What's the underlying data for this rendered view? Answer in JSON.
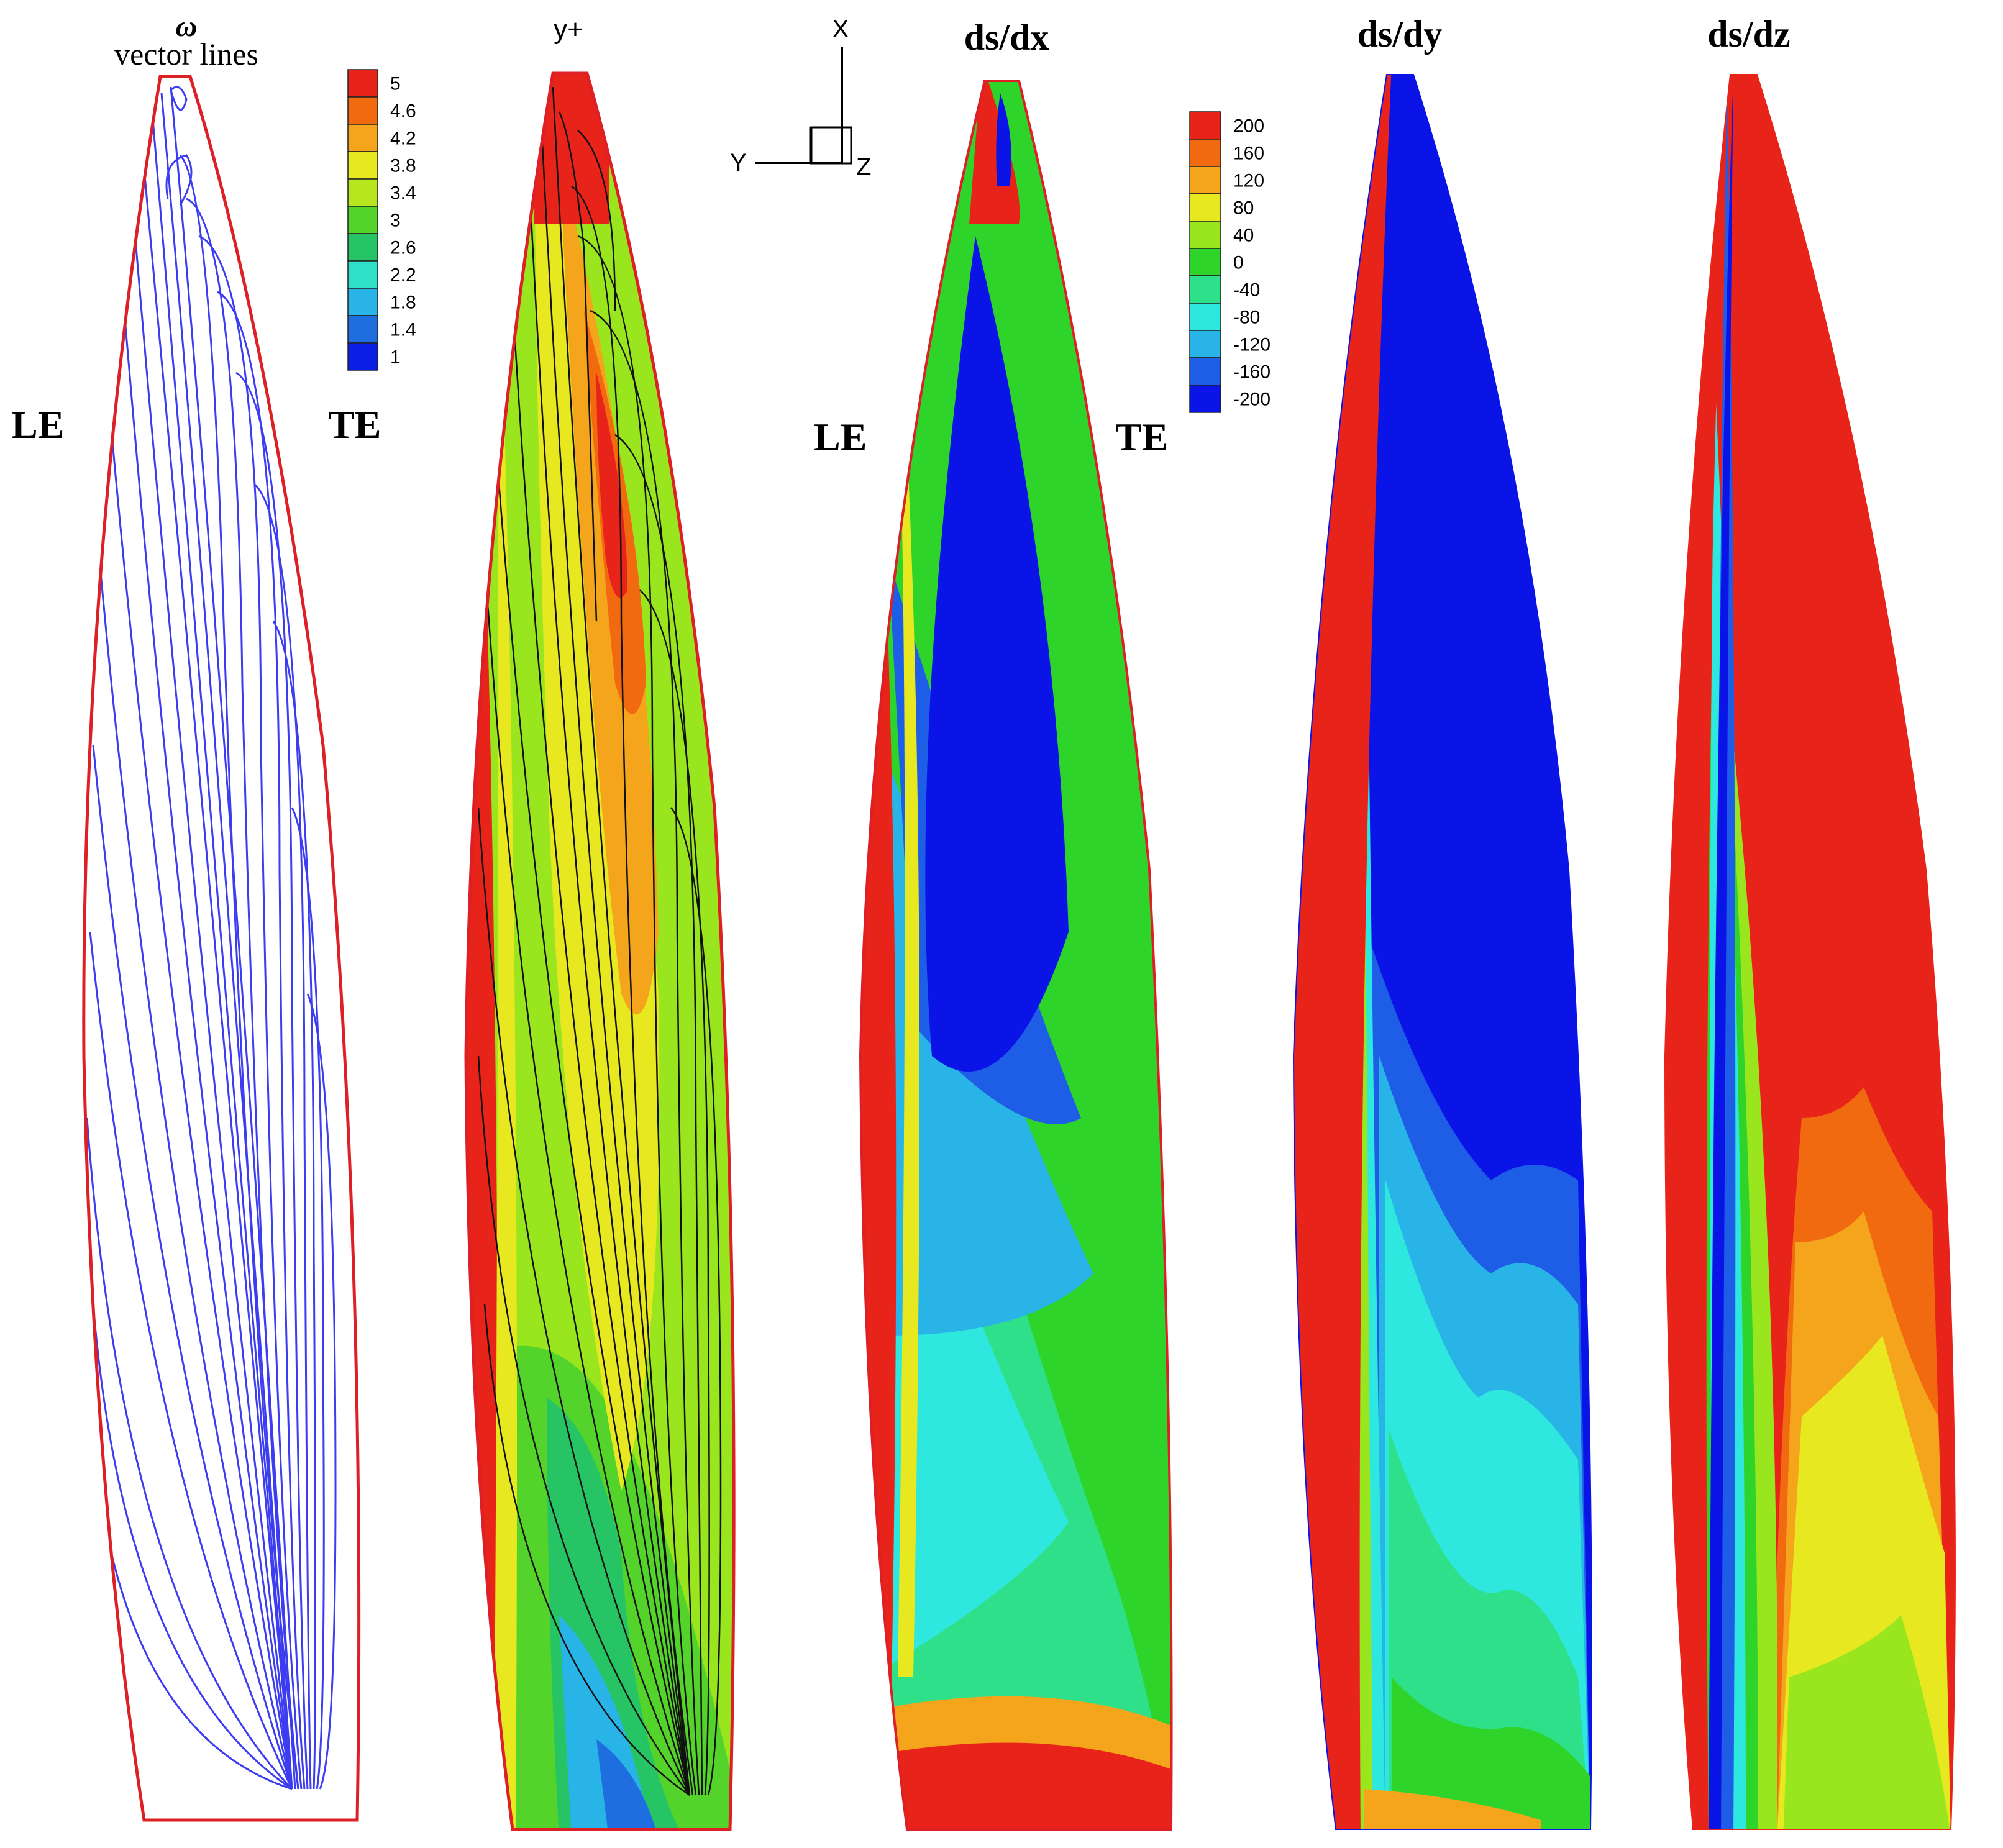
{
  "panels": {
    "omega": {
      "symbol": "ω",
      "title": "vector  lines",
      "le": "LE",
      "te": "TE"
    },
    "yplus": {
      "title": "y+"
    },
    "dsdx": {
      "title": "ds/dx",
      "le": "LE",
      "te": "TE"
    },
    "dsdy": {
      "title": "ds/dy"
    },
    "dsdz": {
      "title": "ds/dz"
    }
  },
  "axes": {
    "x": "X",
    "y": "Y",
    "z": "Z"
  },
  "legend_yplus": {
    "levels": [
      "5",
      "4.6",
      "4.2",
      "3.8",
      "3.4",
      "3",
      "2.6",
      "2.2",
      "1.8",
      "1.4",
      "1"
    ],
    "colors": [
      "#e8231a",
      "#f26a10",
      "#f5a51c",
      "#e8e820",
      "#b8e61e",
      "#54d42a",
      "#26c464",
      "#2ee0c8",
      "#28b4e6",
      "#1e6ee0",
      "#0a1ee6"
    ]
  },
  "legend_ds": {
    "levels": [
      "200",
      "160",
      "120",
      "80",
      "40",
      "0",
      "-40",
      "-80",
      "-120",
      "-160",
      "-200"
    ],
    "colors": [
      "#e8231a",
      "#f26a10",
      "#f5a51c",
      "#e8e820",
      "#9ae61e",
      "#2ed42a",
      "#2ee08a",
      "#2ee8e0",
      "#28b4e6",
      "#1e5ee6",
      "#0a14e6"
    ]
  },
  "colors": {
    "outline": "#dd1f26",
    "streamline": "#3c3cf0",
    "vector_line": "#111111"
  }
}
